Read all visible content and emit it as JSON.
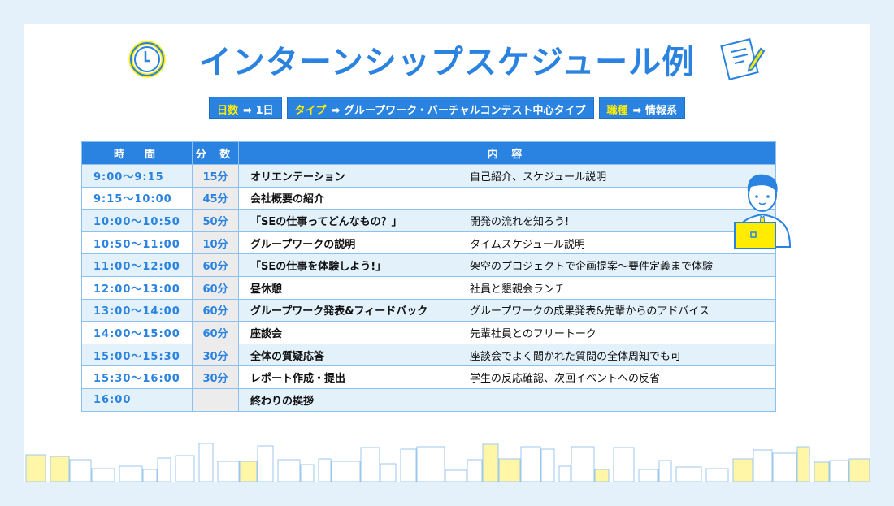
{
  "title": "インターンシップスケジュール例",
  "tags": [
    {
      "key": "日数",
      "value": "1日"
    },
    {
      "key": "タイプ",
      "value": "グループワーク・バーチャルコンテスト中心タイプ"
    },
    {
      "key": "職種",
      "value": "情報系"
    }
  ],
  "arrow": "➡",
  "table": {
    "headers": [
      "時　間",
      "分 数",
      "内 容"
    ],
    "rows": [
      {
        "time": "9:00〜9:15",
        "min": "15分",
        "content": "オリエンテーション",
        "desc": "自己紹介、スケジュール説明"
      },
      {
        "time": "9:15〜10:00",
        "min": "45分",
        "content": "会社概要の紹介",
        "desc": ""
      },
      {
        "time": "10:00〜10:50",
        "min": "50分",
        "content": "「SEの仕事ってどんなもの？」",
        "desc": "開発の流れを知ろう!"
      },
      {
        "time": "10:50〜11:00",
        "min": "10分",
        "content": "グループワークの説明",
        "desc": "タイムスケジュール説明"
      },
      {
        "time": "11:00〜12:00",
        "min": "60分",
        "content": "「SEの仕事を体験しよう!」",
        "desc": "架空のプロジェクトで企画提案〜要件定義まで体験"
      },
      {
        "time": "12:00〜13:00",
        "min": "60分",
        "content": "昼休憩",
        "desc": "社員と懇親会ランチ"
      },
      {
        "time": "13:00〜14:00",
        "min": "60分",
        "content": "グループワーク発表&フィードバック",
        "desc": "グループワークの成果発表&先輩からのアドバイス"
      },
      {
        "time": "14:00〜15:00",
        "min": "60分",
        "content": "座談会",
        "desc": "先輩社員とのフリートーク"
      },
      {
        "time": "15:00〜15:30",
        "min": "30分",
        "content": "全体の質疑応答",
        "desc": "座談会でよく聞かれた質問の全体周知でも可"
      },
      {
        "time": "15:30〜16:00",
        "min": "30分",
        "content": "レポート作成・提出",
        "desc": "学生の反応確認、次回イベントへの反省"
      },
      {
        "time": "16:00",
        "min": "",
        "content": "終わりの挨拶",
        "desc": ""
      }
    ]
  },
  "colors": {
    "accent": "#2a83e0",
    "highlight": "#ffec00",
    "row_alt": "#e3f1fb"
  }
}
